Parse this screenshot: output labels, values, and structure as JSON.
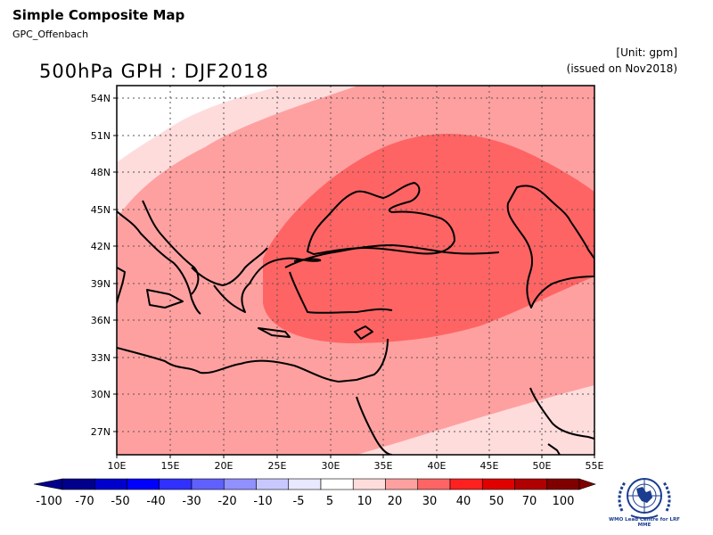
{
  "header": {
    "title": "Simple Composite Map",
    "subtitle": "GPC_Offenbach",
    "map_title": "500hPa GPH : DJF2018",
    "unit": "[Unit: gpm]",
    "issued": "(issued on Nov2018)"
  },
  "map": {
    "lon_labels": [
      "10E",
      "15E",
      "20E",
      "25E",
      "30E",
      "35E",
      "40E",
      "45E",
      "50E",
      "55E"
    ],
    "lat_labels": [
      "54N",
      "51N",
      "48N",
      "45N",
      "42N",
      "39N",
      "36N",
      "33N",
      "30N",
      "27N"
    ]
  },
  "colorbar": {
    "labels": [
      "-100",
      "-70",
      "-50",
      "-40",
      "-30",
      "-20",
      "-10",
      "-5",
      "5",
      "10",
      "20",
      "30",
      "40",
      "50",
      "70",
      "100"
    ],
    "colors": [
      "#00008b",
      "#0000cd",
      "#0000ff",
      "#3030ff",
      "#6060ff",
      "#9090ff",
      "#c8c8ff",
      "#e8e8ff",
      "#ffffff",
      "#ffdcdc",
      "#ffa0a0",
      "#ff6464",
      "#ff2020",
      "#e00000",
      "#b00000",
      "#800000"
    ]
  },
  "logo": {
    "caption": "WMO Lead Centre for LRF MME"
  }
}
